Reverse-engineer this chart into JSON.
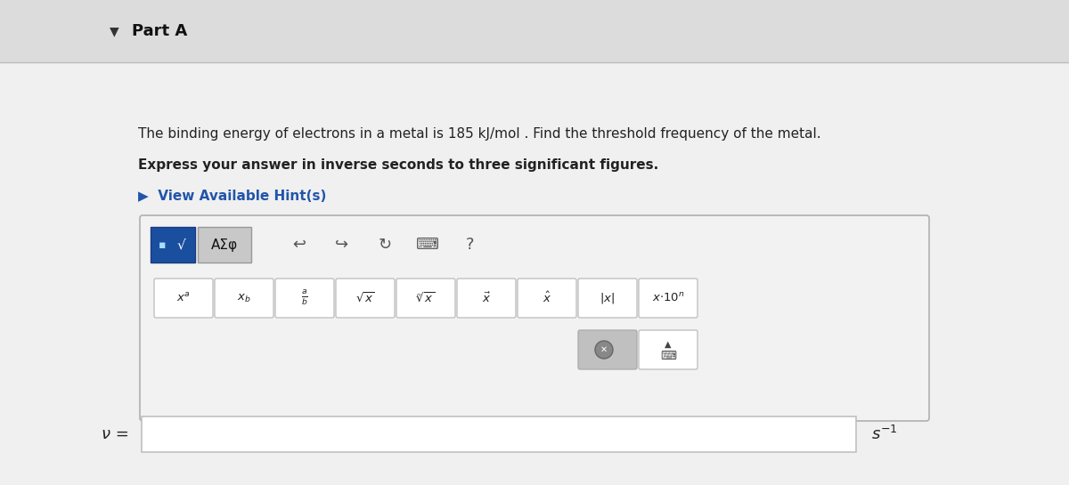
{
  "bg_color": "#e8e8e8",
  "header_bg": "#dcdcdc",
  "content_bg": "#f0f0f0",
  "part_a_text": "Part A",
  "question_text": "The binding energy of electrons in a metal is 185 kJ/mol . Find the threshold frequency of the metal.",
  "bold_text": "Express your answer in inverse seconds to three significant figures.",
  "hint_text": "▶  View Available Hint(s)",
  "hint_color": "#2255aa",
  "nu_label": "ν =",
  "text_color": "#222222",
  "blue_btn_color": "#1a4fa0",
  "gray_btn_color": "#c8c8c8",
  "panel_bg": "#f0f0f0",
  "panel_border": "#b0b0b0",
  "btn_bg": "#ffffff",
  "btn_border": "#bbbbbb",
  "del_btn_bg": "#c0c0c0",
  "input_bg": "#ffffff",
  "input_border": "#c0c0c0"
}
